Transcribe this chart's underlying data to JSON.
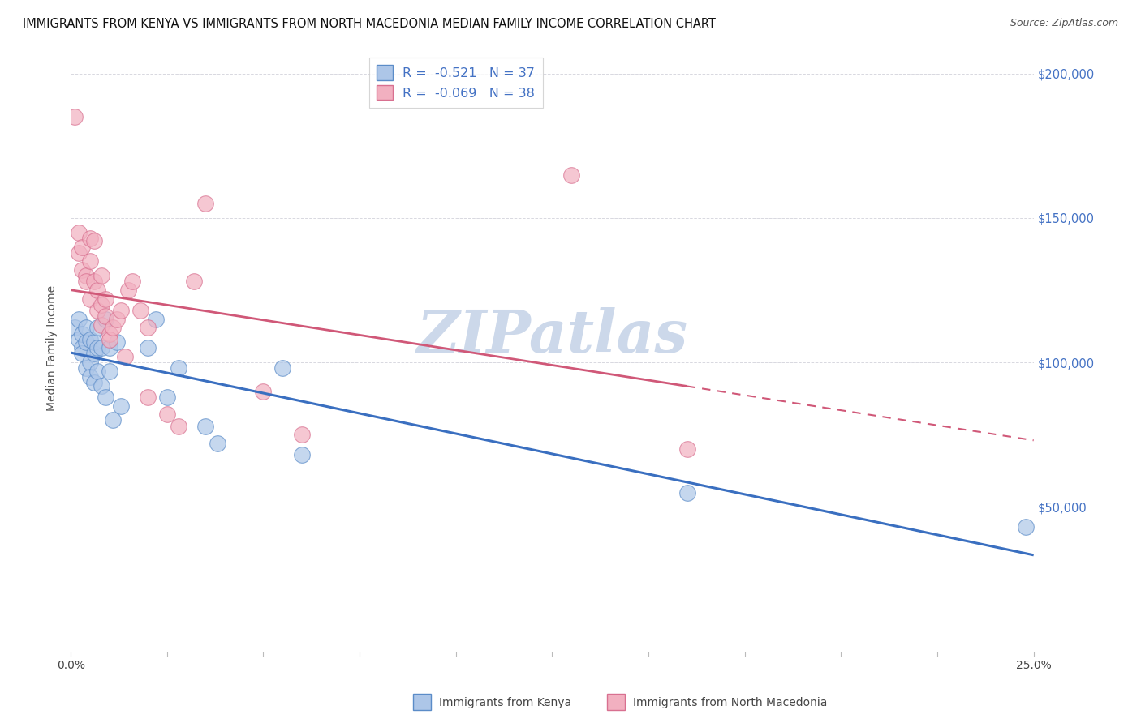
{
  "title": "IMMIGRANTS FROM KENYA VS IMMIGRANTS FROM NORTH MACEDONIA MEDIAN FAMILY INCOME CORRELATION CHART",
  "source": "Source: ZipAtlas.com",
  "ylabel": "Median Family Income",
  "ytick_labels": [
    "$50,000",
    "$100,000",
    "$150,000",
    "$200,000"
  ],
  "ytick_values": [
    50000,
    100000,
    150000,
    200000
  ],
  "legend_label1": "Immigrants from Kenya",
  "legend_label2": "Immigrants from North Macedonia",
  "kenya_color": "#adc6e8",
  "kenya_edge_color": "#5b8cc8",
  "kenya_line_color": "#3a6fc0",
  "macedonia_color": "#f2b0c0",
  "macedonia_edge_color": "#d87090",
  "macedonia_line_color": "#d05878",
  "watermark": "ZIPatlas",
  "kenya_x": [
    0.001,
    0.002,
    0.002,
    0.003,
    0.003,
    0.003,
    0.004,
    0.004,
    0.004,
    0.005,
    0.005,
    0.005,
    0.006,
    0.006,
    0.006,
    0.007,
    0.007,
    0.007,
    0.008,
    0.008,
    0.009,
    0.009,
    0.01,
    0.01,
    0.011,
    0.012,
    0.013,
    0.02,
    0.022,
    0.025,
    0.028,
    0.035,
    0.038,
    0.055,
    0.06,
    0.16,
    0.248
  ],
  "kenya_y": [
    112000,
    108000,
    115000,
    105000,
    110000,
    103000,
    107000,
    98000,
    112000,
    100000,
    108000,
    95000,
    103000,
    93000,
    107000,
    105000,
    97000,
    112000,
    92000,
    105000,
    88000,
    115000,
    105000,
    97000,
    80000,
    107000,
    85000,
    105000,
    115000,
    88000,
    98000,
    78000,
    72000,
    98000,
    68000,
    55000,
    43000
  ],
  "macedonia_x": [
    0.001,
    0.002,
    0.002,
    0.003,
    0.003,
    0.004,
    0.004,
    0.005,
    0.005,
    0.005,
    0.006,
    0.006,
    0.007,
    0.007,
    0.008,
    0.008,
    0.008,
    0.009,
    0.009,
    0.01,
    0.01,
    0.011,
    0.012,
    0.013,
    0.014,
    0.015,
    0.016,
    0.018,
    0.02,
    0.02,
    0.025,
    0.028,
    0.032,
    0.035,
    0.05,
    0.06,
    0.13,
    0.16
  ],
  "macedonia_y": [
    185000,
    145000,
    138000,
    140000,
    132000,
    130000,
    128000,
    143000,
    135000,
    122000,
    142000,
    128000,
    125000,
    118000,
    120000,
    113000,
    130000,
    116000,
    122000,
    110000,
    108000,
    112000,
    115000,
    118000,
    102000,
    125000,
    128000,
    118000,
    88000,
    112000,
    82000,
    78000,
    128000,
    155000,
    90000,
    75000,
    165000,
    70000
  ],
  "xlim": [
    0.0,
    0.25
  ],
  "ylim": [
    0,
    210000
  ],
  "background_color": "#ffffff",
  "grid_color": "#d8d8e0",
  "title_fontsize": 10.5,
  "watermark_color": "#ccd8ea",
  "watermark_fontsize": 52,
  "right_ytick_color": "#4472c4",
  "legend_text_color": "#4472c4"
}
